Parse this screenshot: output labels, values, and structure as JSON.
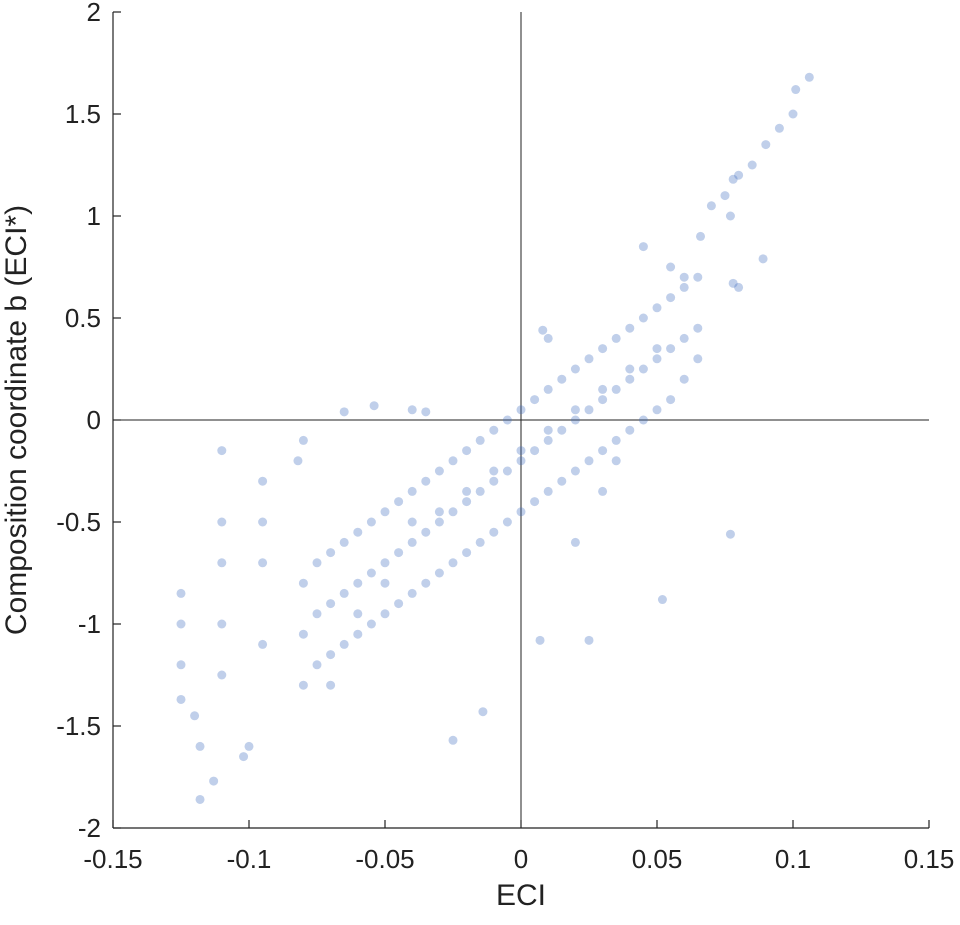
{
  "chart_data": {
    "type": "scatter",
    "xlabel": "ECI",
    "ylabel": "Composition coordinate b (ECI*)",
    "color": "#3b6bbd",
    "alpha": 0.32,
    "zero_lines": true,
    "xlim": [
      -0.15,
      0.15
    ],
    "ylim": [
      -2,
      2
    ],
    "xticks": [
      -0.15,
      -0.1,
      -0.05,
      0,
      0.05,
      0.1,
      0.15
    ],
    "yticks": [
      -2,
      -1.5,
      -1,
      -0.5,
      0,
      0.5,
      1,
      1.5,
      2
    ],
    "x": [
      -0.08,
      -0.08,
      -0.08,
      -0.075,
      -0.075,
      -0.075,
      -0.07,
      -0.07,
      -0.07,
      -0.07,
      -0.065,
      -0.065,
      -0.065,
      -0.06,
      -0.06,
      -0.06,
      -0.06,
      -0.055,
      -0.055,
      -0.055,
      -0.05,
      -0.05,
      -0.05,
      -0.05,
      -0.045,
      -0.045,
      -0.045,
      -0.04,
      -0.04,
      -0.04,
      -0.04,
      -0.035,
      -0.035,
      -0.035,
      -0.03,
      -0.03,
      -0.03,
      -0.03,
      -0.025,
      -0.025,
      -0.025,
      -0.02,
      -0.02,
      -0.02,
      -0.02,
      -0.015,
      -0.015,
      -0.015,
      -0.01,
      -0.01,
      -0.01,
      -0.01,
      -0.005,
      -0.005,
      -0.005,
      0,
      0,
      0,
      0,
      0.005,
      0.005,
      0.005,
      0.01,
      0.01,
      0.01,
      0.01,
      0.015,
      0.015,
      0.015,
      0.02,
      0.02,
      0.02,
      0.02,
      0.025,
      0.025,
      0.025,
      0.03,
      0.03,
      0.03,
      0.03,
      0.035,
      0.035,
      0.035,
      0.04,
      0.04,
      0.04,
      0.04,
      0.045,
      0.045,
      0.045,
      0.05,
      0.05,
      0.05,
      0.05,
      0.055,
      0.055,
      0.055,
      0.06,
      0.06,
      0.06,
      0.065,
      0.065,
      0.065,
      0.106,
      0.101,
      0.1,
      0.095,
      0.09,
      0.085,
      0.08,
      0.078,
      0.075,
      0.07,
      0.077,
      0.066,
      0.089,
      0.08,
      0.078,
      0.077,
      0.052,
      0.025,
      0.007,
      -0.014,
      -0.025,
      -0.118,
      -0.113,
      -0.118,
      -0.12,
      -0.125,
      -0.125,
      -0.125,
      -0.125,
      -0.11,
      -0.11,
      -0.11,
      -0.11,
      -0.11,
      -0.095,
      -0.095,
      -0.095,
      -0.095,
      -0.1,
      -0.102,
      -0.08,
      -0.082,
      -0.065,
      -0.054,
      -0.04,
      -0.035,
      0.01,
      0.008,
      0.045,
      0.055,
      0.06,
      0.02,
      0.03,
      0.035
    ],
    "values": [
      -1.3,
      -1.05,
      -0.8,
      -1.2,
      -0.95,
      -0.7,
      -1.15,
      -0.9,
      -0.65,
      -1.3,
      -1.1,
      -0.85,
      -0.6,
      -1.05,
      -0.8,
      -0.55,
      -0.95,
      -1.0,
      -0.75,
      -0.5,
      -0.95,
      -0.7,
      -0.45,
      -0.8,
      -0.9,
      -0.65,
      -0.4,
      -0.85,
      -0.6,
      -0.35,
      -0.5,
      -0.8,
      -0.55,
      -0.3,
      -0.75,
      -0.5,
      -0.25,
      -0.45,
      -0.7,
      -0.45,
      -0.2,
      -0.65,
      -0.4,
      -0.15,
      -0.35,
      -0.6,
      -0.35,
      -0.1,
      -0.55,
      -0.3,
      -0.05,
      -0.25,
      -0.5,
      -0.25,
      0.0,
      -0.45,
      -0.2,
      0.05,
      -0.15,
      -0.4,
      -0.15,
      0.1,
      -0.35,
      -0.1,
      0.15,
      -0.05,
      -0.3,
      -0.05,
      0.2,
      -0.25,
      0.0,
      0.25,
      0.05,
      -0.2,
      0.05,
      0.3,
      -0.15,
      0.1,
      0.35,
      0.15,
      -0.1,
      0.15,
      0.4,
      -0.05,
      0.2,
      0.45,
      0.25,
      0.0,
      0.25,
      0.5,
      0.05,
      0.3,
      0.55,
      0.35,
      0.1,
      0.35,
      0.6,
      0.2,
      0.4,
      0.65,
      0.3,
      0.45,
      0.7,
      1.68,
      1.62,
      1.5,
      1.43,
      1.35,
      1.25,
      1.2,
      1.18,
      1.1,
      1.05,
      1.0,
      0.9,
      0.79,
      0.65,
      0.67,
      -0.56,
      -0.88,
      -1.08,
      -1.08,
      -1.43,
      -1.57,
      -1.86,
      -1.77,
      -1.6,
      -1.45,
      -0.85,
      -1.0,
      -1.2,
      -1.37,
      -0.5,
      -0.7,
      -1.0,
      -1.25,
      -0.15,
      -0.3,
      -0.5,
      -0.7,
      -1.1,
      -1.6,
      -1.65,
      -0.1,
      -0.2,
      0.04,
      0.07,
      0.05,
      0.04,
      0.4,
      0.44,
      0.85,
      0.75,
      0.7,
      -0.6,
      -0.35,
      -0.2
    ]
  }
}
